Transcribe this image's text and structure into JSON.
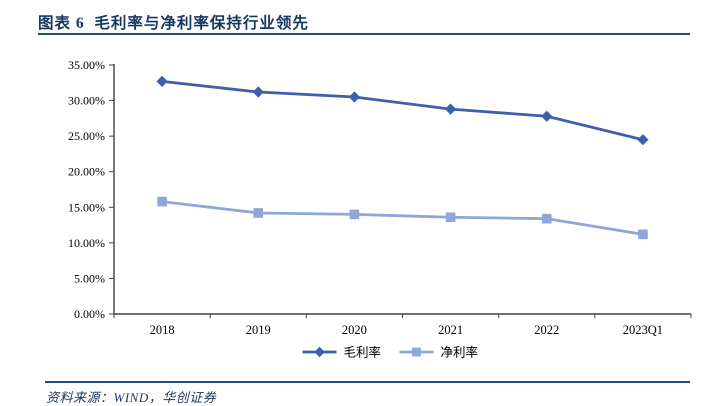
{
  "header": {
    "title": "图表 6  毛利率与净利率保持行业领先"
  },
  "footer": {
    "source": "资料来源：WIND，华创证券"
  },
  "colors": {
    "title_navy": "#17375E",
    "rule_blue": "#1F4E79",
    "axis": "#404040",
    "series_gross": "#3B61AD",
    "series_net": "#8FA6DA"
  },
  "chart_data": {
    "type": "line",
    "title": "",
    "xlabel": "",
    "ylabel": "",
    "categories": [
      "2018",
      "2019",
      "2020",
      "2021",
      "2022",
      "2023Q1"
    ],
    "series": [
      {
        "name": "毛利率",
        "marker": "diamond",
        "color": "#3B61AD",
        "values": [
          32.7,
          31.2,
          30.5,
          28.8,
          27.8,
          24.5
        ]
      },
      {
        "name": "净利率",
        "marker": "square",
        "color": "#8FA6DA",
        "values": [
          15.8,
          14.2,
          14.0,
          13.6,
          13.4,
          11.2
        ]
      }
    ],
    "ylim": [
      0,
      35
    ],
    "ytick_step": 5,
    "ytick_labels": [
      "0.00%",
      "5.00%",
      "10.00%",
      "15.00%",
      "20.00%",
      "25.00%",
      "30.00%",
      "35.00%"
    ],
    "grid": false,
    "legend_position": "bottom"
  }
}
